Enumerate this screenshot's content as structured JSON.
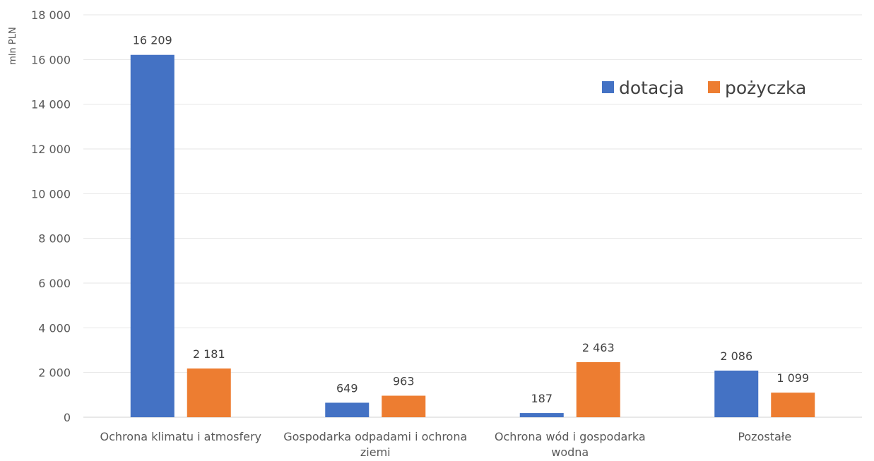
{
  "chart_data": {
    "type": "bar",
    "title": "",
    "xlabel": "",
    "ylabel": "mln PLN",
    "ylim": [
      0,
      18000
    ],
    "yticks": [
      0,
      2000,
      4000,
      6000,
      8000,
      10000,
      12000,
      14000,
      16000,
      18000
    ],
    "ytick_labels": [
      "0",
      "2 000",
      "4 000",
      "6 000",
      "8 000",
      "10 000",
      "12 000",
      "14 000",
      "16 000",
      "18 000"
    ],
    "grid": true,
    "legend_position": "top-right",
    "categories": [
      [
        "Ochrona klimatu i atmosfery"
      ],
      [
        "Gospodarka odpadami i ochrona",
        "ziemi"
      ],
      [
        "Ochrona wód i gospodarka",
        "wodna"
      ],
      [
        "Pozostałe"
      ]
    ],
    "series": [
      {
        "name": "dotacja",
        "color": "#4472c4",
        "values": [
          16209,
          649,
          187,
          2086
        ],
        "labels": [
          "16 209",
          "649",
          "187",
          "2 086"
        ]
      },
      {
        "name": "pożyczka",
        "color": "#ed7d31",
        "values": [
          2181,
          963,
          2463,
          1099
        ],
        "labels": [
          "2 181",
          "963",
          "2 463",
          "1 099"
        ]
      }
    ]
  }
}
